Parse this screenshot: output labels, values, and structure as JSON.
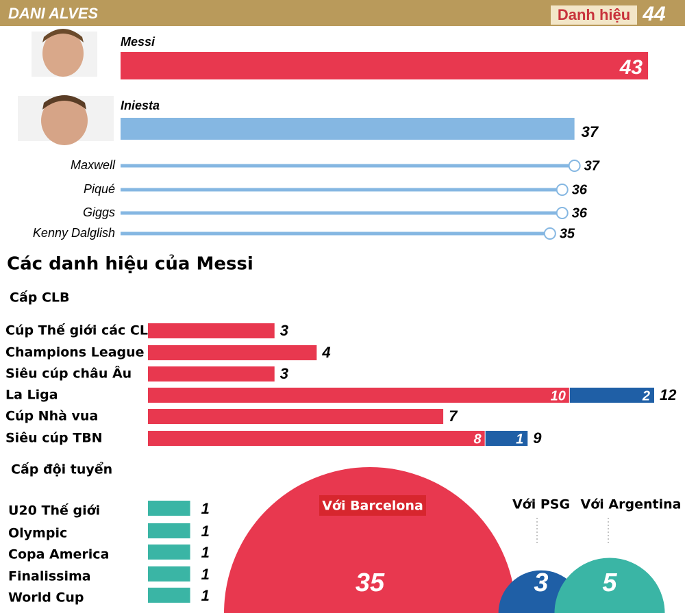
{
  "chart_data": [
    {
      "type": "ranking",
      "title": "DANI ALVES",
      "total_label": "Danh hiệu",
      "total": 44,
      "categories": [
        "Messi",
        "Iniesta",
        "Maxwell",
        "Piqué",
        "Giggs",
        "Kenny Dalglish"
      ],
      "values": [
        43,
        37,
        37,
        36,
        36,
        35
      ],
      "colors": [
        "#e8384f",
        "#85b7e2",
        "#85b7e2",
        "#85b7e2",
        "#85b7e2",
        "#85b7e2"
      ],
      "xlim": [
        0,
        44
      ]
    },
    {
      "type": "stacked-bar",
      "title": "Các danh hiệu của Messi",
      "subtitle": "Cấp CLB",
      "categories": [
        "Cúp Thế giới các CLB",
        "Champions League",
        "Siêu cúp châu Âu",
        "La Liga",
        "Cúp Nhà vua",
        "Siêu cúp TBN"
      ],
      "series": [
        {
          "color": "#e8384f",
          "values": [
            3,
            4,
            3,
            10,
            7,
            8
          ]
        },
        {
          "color": "#1f5fa6",
          "values": [
            null,
            null,
            null,
            2,
            null,
            1
          ]
        }
      ],
      "totals": [
        3,
        4,
        3,
        12,
        7,
        9
      ],
      "xlim": [
        0,
        12
      ]
    },
    {
      "type": "bar",
      "subtitle": "Cấp đội tuyển",
      "categories": [
        "U20 Thế giới",
        "Olympic",
        "Copa America",
        "Finalissima",
        "World Cup"
      ],
      "values": [
        1,
        1,
        1,
        1,
        1
      ],
      "color": "#3ab5a5",
      "xlim": [
        0,
        12
      ]
    },
    {
      "type": "semicircle",
      "categories": [
        "Với Barcelona",
        "Với PSG",
        "Với Argentina"
      ],
      "values": [
        35,
        3,
        5
      ],
      "colors": [
        "#e8384f",
        "#1f5fa6",
        "#3ab5a5"
      ]
    }
  ]
}
